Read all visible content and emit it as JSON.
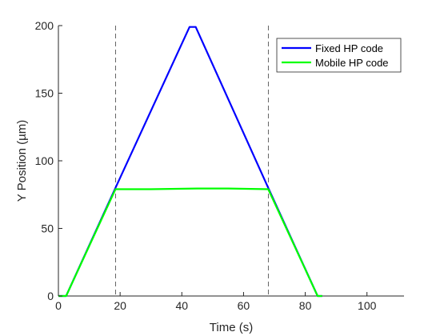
{
  "chart_data": {
    "type": "line",
    "title": "",
    "xlabel": "Time (s)",
    "ylabel": "Y Position (µm)",
    "xlim": [
      0,
      112
    ],
    "ylim": [
      0,
      200
    ],
    "xticks": [
      0,
      20,
      40,
      60,
      80,
      100
    ],
    "yticks": [
      0,
      50,
      100,
      150,
      200
    ],
    "grid": false,
    "legend_position": "top-right",
    "reference_lines": [
      {
        "axis": "x",
        "value": 18.5,
        "style": "dashed",
        "color": "#000000"
      },
      {
        "axis": "x",
        "value": 68,
        "style": "dashed",
        "color": "#000000"
      }
    ],
    "series": [
      {
        "name": "Fixed HP code",
        "color": "#0000ff",
        "x": [
          0,
          2.5,
          18.5,
          42.5,
          44.5,
          68,
          84,
          85.5
        ],
        "y": [
          0,
          0,
          80,
          199,
          199,
          80,
          0,
          0
        ]
      },
      {
        "name": "Mobile HP code",
        "color": "#00ff00",
        "x": [
          0,
          2.5,
          18.5,
          30,
          45,
          55,
          68,
          84,
          85.5
        ],
        "y": [
          0,
          0,
          79,
          79,
          79.5,
          79.5,
          79,
          0,
          0
        ]
      }
    ]
  }
}
